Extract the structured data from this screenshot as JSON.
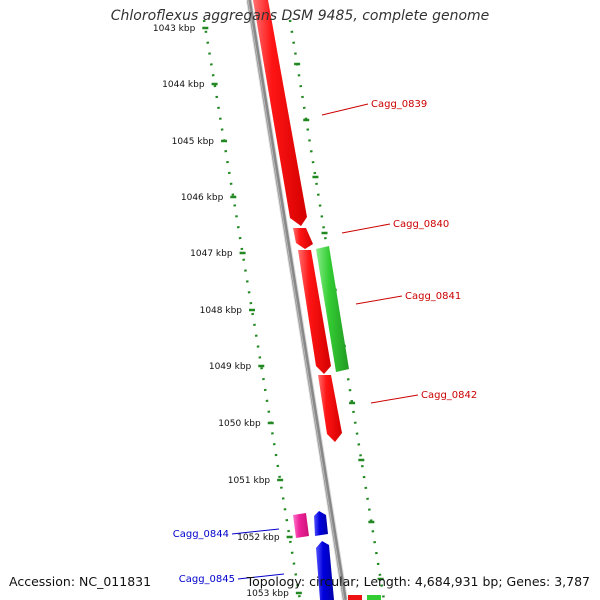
{
  "title": "Chloroflexus aggregans DSM 9485, complete genome",
  "accession": "Accession: NC_011831",
  "stats": "Topology: circular; Length: 4,684,931 bp; Genes: 3,787",
  "ticks": [
    {
      "label": "1043 kbp",
      "color": "#9a9a9a"
    },
    {
      "label": "1044 kbp",
      "color": "#111111"
    },
    {
      "label": "1045 kbp",
      "color": "#111111"
    },
    {
      "label": "1046 kbp",
      "color": "#111111"
    },
    {
      "label": "1047 kbp",
      "color": "#111111"
    },
    {
      "label": "1048 kbp",
      "color": "#111111"
    },
    {
      "label": "1049 kbp",
      "color": "#111111"
    },
    {
      "label": "1050 kbp",
      "color": "#111111"
    },
    {
      "label": "1051 kbp",
      "color": "#111111"
    },
    {
      "label": "1052 kbp",
      "color": "#111111"
    },
    {
      "label": "1053 kbp",
      "color": "#111111"
    }
  ],
  "gene_labels": [
    {
      "name": "Cagg_0839",
      "color": "#cc0000"
    },
    {
      "name": "Cagg_0840",
      "color": "#cc0000"
    },
    {
      "name": "Cagg_0841",
      "color": "#cc0000"
    },
    {
      "name": "Cagg_0842",
      "color": "#cc0000"
    },
    {
      "name": "Cagg_0844",
      "color": "#0000cc"
    },
    {
      "name": "Cagg_0845",
      "color": "#0000cc"
    }
  ],
  "colors": {
    "forward_gene": "#ee1111",
    "reverse_gene": "#33cc33",
    "pink_gene": "#ee2299",
    "blue_gene": "#0000dd",
    "backbone": "#888888",
    "dotted_ring": "#228822"
  }
}
